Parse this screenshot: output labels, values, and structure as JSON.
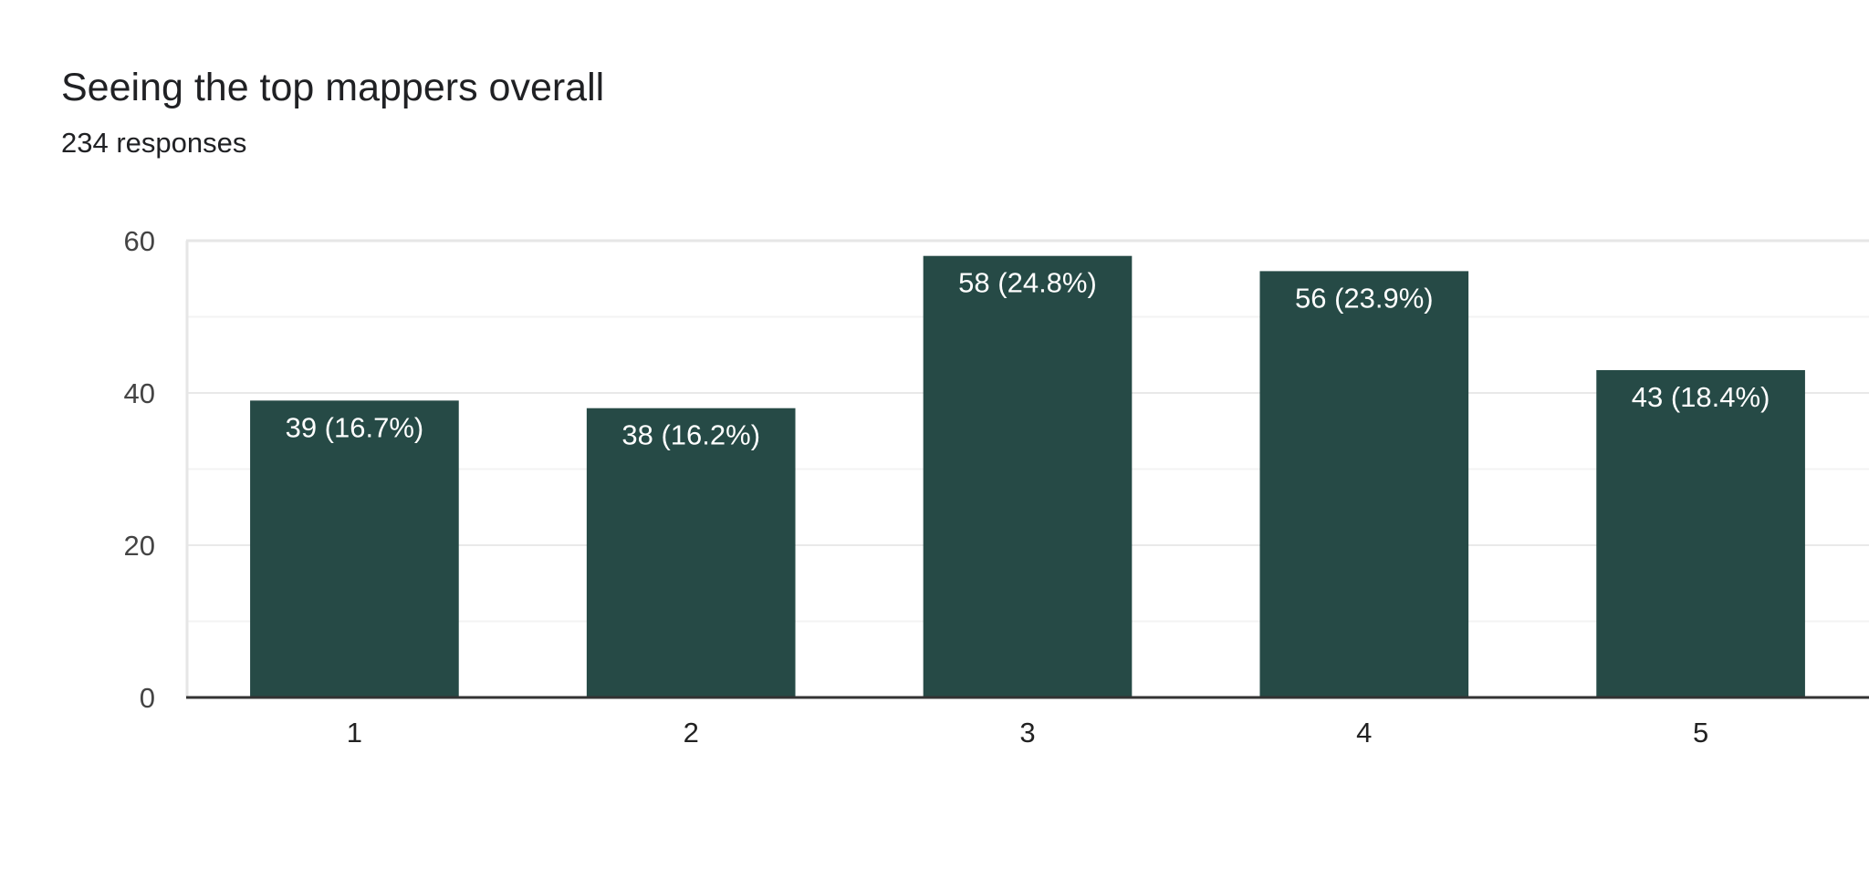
{
  "chart_data": {
    "type": "bar",
    "title": "Seeing the top mappers overall",
    "subtitle": "234 responses",
    "categories": [
      "1",
      "2",
      "3",
      "4",
      "5"
    ],
    "values": [
      39,
      38,
      58,
      56,
      43
    ],
    "data_labels": [
      "39 (16.7%)",
      "38 (16.2%)",
      "58 (24.8%)",
      "56 (23.9%)",
      "43 (18.4%)"
    ],
    "y_ticks": [
      "0",
      "20",
      "40",
      "60"
    ],
    "ylim": [
      0,
      60
    ],
    "grid": true,
    "legend": "none",
    "bar_color": "#264a46"
  }
}
